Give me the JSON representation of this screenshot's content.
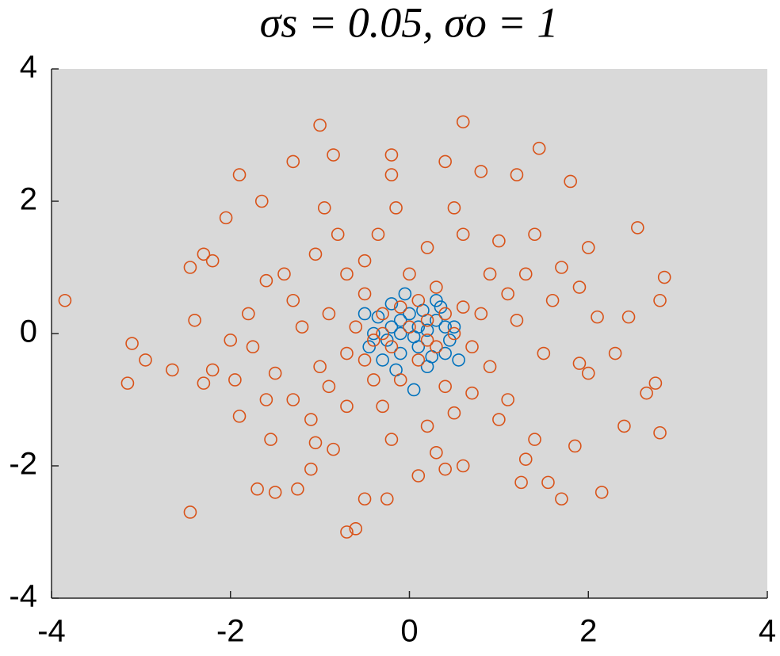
{
  "chart_data": {
    "type": "scatter",
    "title": "σs = 0.05, σo = 1",
    "xlim": [
      -4,
      4
    ],
    "ylim": [
      -4,
      4
    ],
    "xticks": [
      -4,
      -2,
      0,
      2,
      4
    ],
    "yticks": [
      -4,
      -2,
      0,
      2,
      4
    ],
    "background": "#d9d9d9",
    "series": [
      {
        "color": "#0072bd",
        "x": [
          0.05,
          -0.2,
          0.3,
          -0.4,
          0.4,
          0.1,
          -0.1,
          0.2,
          -0.3,
          0.5,
          -0.5,
          0.0,
          0.3,
          -0.2,
          0.1,
          -0.1,
          0.45,
          -0.35,
          0.25,
          -0.15,
          0.55,
          0.35,
          -0.05,
          0.15,
          -0.45,
          0.05,
          0.2,
          -0.25,
          0.4,
          -0.1
        ],
        "values": [
          -0.85,
          0.45,
          0.5,
          0.0,
          -0.3,
          0.1,
          -0.3,
          -0.5,
          -0.4,
          0.1,
          0.3,
          0.3,
          0.2,
          0.1,
          -0.2,
          0.0,
          -0.1,
          0.25,
          -0.35,
          -0.55,
          -0.4,
          0.4,
          0.6,
          0.35,
          -0.2,
          -0.05,
          0.05,
          -0.1,
          0.1,
          0.2
        ]
      },
      {
        "color": "#d95319",
        "x": [
          -3.85,
          -3.1,
          -3.15,
          -2.95,
          -2.65,
          -2.45,
          -2.45,
          -2.3,
          -2.2,
          -2.4,
          -2.3,
          -2.2,
          -2.05,
          -1.9,
          -1.95,
          -1.9,
          -1.65,
          -1.55,
          -1.6,
          -1.7,
          -1.5,
          -1.3,
          -1.25,
          -1.1,
          -1.0,
          -0.95,
          -0.85,
          -0.7,
          -0.6,
          -0.5,
          -0.25,
          -0.2,
          -0.15,
          -0.2,
          0.1,
          0.4,
          0.6,
          0.8,
          1.2,
          1.45,
          1.7,
          1.8,
          2.15,
          2.0,
          2.55,
          2.85,
          2.8,
          2.8,
          2.75,
          2.65,
          2.4,
          2.45,
          2.3,
          2.1,
          1.9,
          1.85,
          1.3,
          1.4,
          1.25,
          1.55,
          0.6,
          0.4,
          0.3,
          -0.85,
          -1.05,
          -1.3,
          -1.5,
          -1.8,
          -1.75,
          -1.3,
          -1.05,
          -0.7,
          -0.35,
          0.2,
          0.6,
          1.0,
          1.3,
          1.6,
          1.1,
          0.5,
          -0.2,
          -0.7,
          -1.0,
          -0.9,
          -0.5,
          0.3,
          0.8,
          0.9,
          0.4,
          -0.4,
          -0.6,
          -0.3,
          0.2,
          0.5,
          0.1,
          -0.2,
          0.0,
          -0.1,
          0.3,
          -0.4,
          0.6,
          0.7,
          -0.7,
          1.2,
          1.5,
          -1.2,
          -1.4,
          1.7,
          2.0,
          -2.0,
          1.9,
          -0.8,
          0.9,
          -0.3,
          0.2,
          1.0,
          -1.6,
          0.0,
          0.5,
          -0.5,
          1.4,
          -1.1,
          0.7,
          -0.1,
          0.4,
          -0.3,
          0.2,
          0.1,
          -0.5,
          1.1,
          -0.9
        ],
        "values": [
          0.5,
          -0.15,
          -0.75,
          -0.4,
          -0.55,
          -2.7,
          1.0,
          1.2,
          1.1,
          0.2,
          -0.75,
          -0.55,
          1.75,
          2.4,
          -0.7,
          -1.25,
          2.0,
          -1.6,
          0.8,
          -2.35,
          -2.4,
          2.6,
          -2.35,
          -2.05,
          3.15,
          1.9,
          2.7,
          -3.0,
          -2.95,
          -2.5,
          -2.5,
          2.4,
          1.9,
          2.7,
          -2.15,
          2.6,
          3.2,
          2.45,
          2.4,
          2.8,
          -2.5,
          2.3,
          -2.4,
          1.3,
          1.6,
          0.85,
          0.5,
          -1.5,
          -0.75,
          -0.9,
          -1.4,
          0.25,
          -0.3,
          0.25,
          -0.45,
          -1.7,
          -1.9,
          -1.6,
          -2.25,
          -2.25,
          -2.0,
          -2.05,
          -1.8,
          -1.75,
          -1.65,
          -1.0,
          -0.6,
          0.3,
          -0.2,
          0.5,
          1.2,
          0.9,
          1.5,
          1.3,
          1.5,
          1.4,
          0.9,
          0.5,
          -1.0,
          -1.2,
          -1.6,
          -1.1,
          -0.5,
          0.3,
          0.6,
          0.7,
          0.3,
          -0.5,
          -0.8,
          -0.7,
          0.1,
          0.3,
          0.2,
          0.0,
          -0.4,
          -0.2,
          0.1,
          0.4,
          -0.2,
          -0.1,
          0.4,
          -0.2,
          -0.3,
          0.2,
          -0.3,
          0.1,
          0.9,
          1.0,
          -0.6,
          -0.1,
          0.7,
          1.5,
          0.9,
          -1.1,
          -1.4,
          -1.3,
          -1.0,
          0.9,
          1.9,
          1.1,
          1.5,
          -1.3,
          -0.9,
          -0.7,
          0.3,
          0.0,
          -0.1,
          0.5,
          -0.4,
          0.6,
          -0.8
        ]
      }
    ]
  }
}
